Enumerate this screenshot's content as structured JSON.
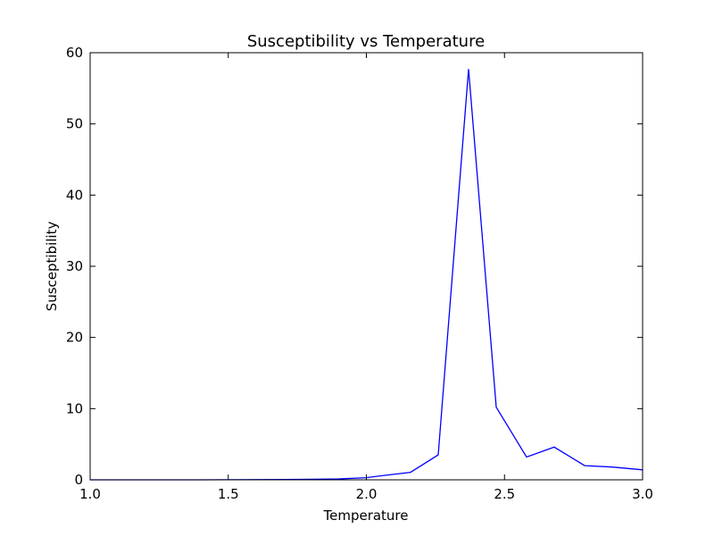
{
  "chart_data": {
    "type": "line",
    "title": "Susceptibility vs Temperature",
    "xlabel": "Temperature",
    "ylabel": "Susceptibility",
    "xlim": [
      1.0,
      3.0
    ],
    "ylim": [
      0,
      60
    ],
    "xticks": [
      "1.0",
      "1.5",
      "2.0",
      "2.5",
      "3.0"
    ],
    "yticks": [
      "0",
      "10",
      "20",
      "30",
      "40",
      "50",
      "60"
    ],
    "grid": false,
    "series": [
      {
        "color": "#0000ff",
        "x": [
          1.0,
          1.1,
          1.2,
          1.3,
          1.4,
          1.5,
          1.6,
          1.7,
          1.8,
          1.9,
          2.0,
          2.05,
          2.16,
          2.26,
          2.37,
          2.47,
          2.58,
          2.68,
          2.79,
          2.89,
          3.0
        ],
        "y": [
          0.0,
          0.0,
          0.0,
          0.0,
          0.0,
          0.01,
          0.02,
          0.04,
          0.07,
          0.13,
          0.3,
          0.55,
          1.05,
          3.5,
          57.7,
          10.2,
          3.2,
          4.6,
          2.0,
          1.8,
          1.4
        ]
      }
    ]
  }
}
